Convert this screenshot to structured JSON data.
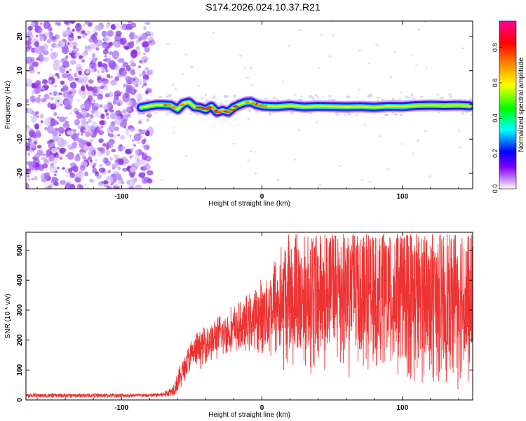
{
  "figure_title": "S174.2026.024.10.37.R21",
  "colors": {
    "scatter_purple": "#8a2be2",
    "snr_line": "#ee3333",
    "frame": "#000000"
  },
  "chart_data": [
    {
      "type": "heatmap",
      "title": "S174.2026.024.10.37.R21",
      "xlabel": "Height of straight line (km)",
      "ylabel": "Frequency (Hz)",
      "xlim": [
        -168,
        150
      ],
      "ylim": [
        -24.5,
        24.5
      ],
      "xticks": [
        -100,
        0,
        100
      ],
      "xtick_labels": [
        "-100",
        "0",
        "100"
      ],
      "yticks": [
        -20,
        -10,
        0,
        10,
        20
      ],
      "ytick_labels": [
        "-20",
        "-10",
        "0",
        "10",
        "20"
      ],
      "grid": false,
      "noise_region_x": [
        -168,
        -78
      ],
      "ridge": {
        "description": "Dominant frequency track",
        "x": [
          -86,
          -80,
          -75,
          -70,
          -65,
          -60,
          -56,
          -52,
          -48,
          -44,
          -40,
          -36,
          -32,
          -28,
          -24,
          -20,
          -16,
          -12,
          -8,
          -4,
          0,
          10,
          20,
          30,
          40,
          50,
          60,
          70,
          80,
          90,
          100,
          110,
          120,
          130,
          140,
          148
        ],
        "freq": [
          -0.8,
          -0.3,
          0,
          0,
          -0.1,
          -1.3,
          0.4,
          0.8,
          -0.6,
          -0.8,
          -1.4,
          -0.4,
          -2.1,
          -1.6,
          -2.1,
          -0.7,
          0.1,
          0.7,
          0.9,
          0.1,
          -0.3,
          -0.5,
          -0.2,
          -0.6,
          -0.4,
          -0.5,
          -0.6,
          -0.5,
          -0.7,
          -0.4,
          -0.5,
          -0.2,
          -0.1,
          -0.2,
          -0.1,
          -0.3
        ]
      },
      "colorbar": {
        "label": "Normalized spectral amplitude",
        "range": [
          0.0,
          0.95
        ],
        "ticks": [
          0.0,
          0.2,
          0.4,
          0.6,
          0.8
        ],
        "tick_labels": [
          "0.0",
          "0.2",
          "0.4",
          "0.6",
          "0.8"
        ],
        "colormap": [
          "#ffffff",
          "#8b00ff",
          "#0000ff",
          "#00ffff",
          "#00ff00",
          "#ffff00",
          "#ff8000",
          "#ff0000",
          "#ff00aa"
        ]
      }
    },
    {
      "type": "line",
      "xlabel": "Height of straight line (km)",
      "ylabel": "SNR (10 * v/v)",
      "xlim": [
        -168,
        150
      ],
      "ylim": [
        0,
        560
      ],
      "xticks": [
        -100,
        0,
        100
      ],
      "xtick_labels": [
        "-100",
        "0",
        "100"
      ],
      "yticks": [
        0,
        100,
        200,
        300,
        400,
        500
      ],
      "ytick_labels": [
        "0",
        "100",
        "200",
        "300",
        "400",
        "500"
      ],
      "grid": false,
      "series": [
        {
          "name": "SNR",
          "envelope_x": [
            -168,
            -120,
            -80,
            -70,
            -64,
            -60,
            -55,
            -50,
            -45,
            -40,
            -35,
            -30,
            -25,
            -20,
            -15,
            -10,
            -5,
            0,
            5,
            10,
            15,
            20,
            30,
            40,
            50,
            60,
            80,
            100,
            120,
            140,
            150
          ],
          "mean": [
            15,
            15,
            15,
            18,
            30,
            60,
            110,
            150,
            170,
            190,
            200,
            215,
            225,
            235,
            240,
            255,
            270,
            280,
            300,
            320,
            330,
            340,
            350,
            360,
            370,
            380,
            360,
            350,
            345,
            340,
            340
          ],
          "spread": [
            8,
            8,
            8,
            10,
            20,
            40,
            50,
            60,
            65,
            70,
            70,
            75,
            80,
            85,
            90,
            100,
            110,
            130,
            160,
            200,
            230,
            250,
            260,
            270,
            280,
            290,
            290,
            290,
            290,
            290,
            290
          ]
        }
      ]
    }
  ]
}
